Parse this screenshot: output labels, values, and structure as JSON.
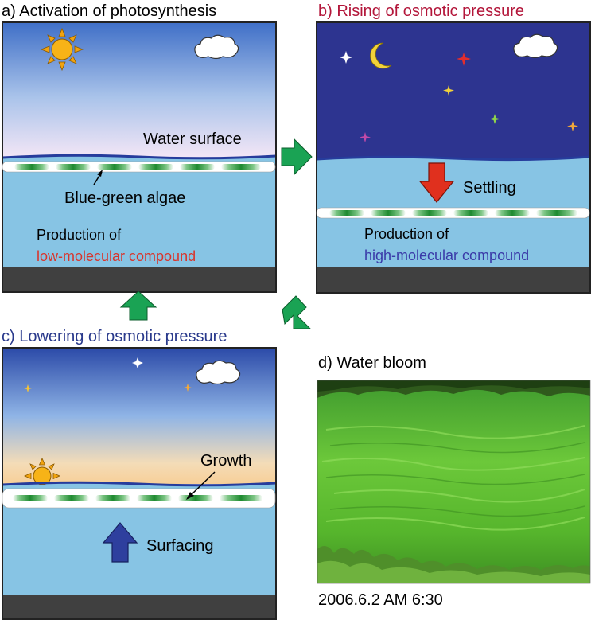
{
  "panel_a": {
    "title": "a) Activation of photosynthesis",
    "water_surface": "Water surface",
    "algae_label": "Blue-green algae",
    "production_line1": "Production of",
    "production_line2": "low-molecular compound"
  },
  "panel_b": {
    "title": "b) Rising of osmotic pressure",
    "settling": "Settling",
    "production_line1": "Production of",
    "production_line2": "high-molecular compound"
  },
  "panel_c": {
    "title": "c) Lowering of osmotic pressure",
    "growth": "Growth",
    "surfacing": "Surfacing"
  },
  "panel_d": {
    "title": "d) Water bloom",
    "caption": "2006.6.2 AM 6:30"
  },
  "colors": {
    "water": "#87c4e4",
    "ground": "#404040",
    "night_sky": "#2d3490",
    "title_a": "#000000",
    "title_b": "#b3163a",
    "title_c": "#2a3a8c",
    "low_molecular": "#d9342b",
    "high_molecular": "#3a3aa8",
    "cycle_arrow": "#1aa354",
    "settling_arrow": "#e0301e",
    "surfacing_arrow": "#2e3f9e",
    "algae_green": "#2e9a3c"
  },
  "icons": [
    "sun-icon",
    "cloud-icon",
    "moon-icon",
    "star-icon",
    "cycle-arrow-icon"
  ]
}
